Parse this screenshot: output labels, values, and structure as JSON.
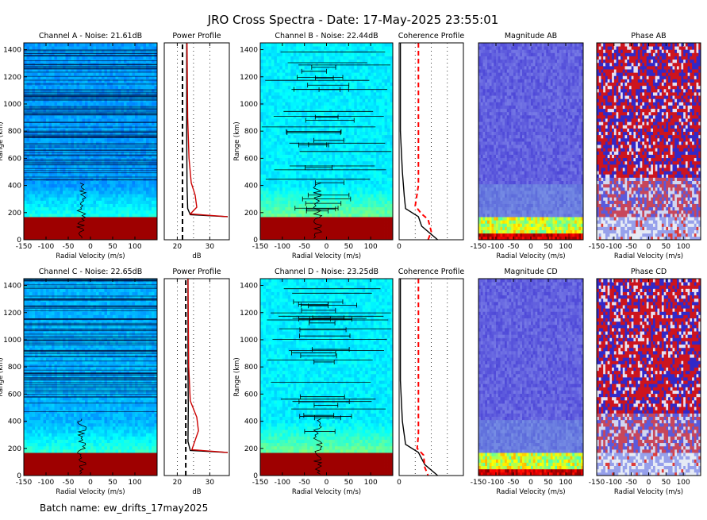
{
  "figure": {
    "title": "JRO Cross Spectra - Date: 17-May-2025 23:55:01",
    "batch_label": "Batch name: ew_drifts_17may2025"
  },
  "labels": {
    "radial_velocity": "Radial Velocity (m/s)",
    "range_km": "Range (km)",
    "db": "dB"
  },
  "chart_data": [
    {
      "id": "chA",
      "type": "heatmap",
      "title": "Channel A - Noise: 21.61dB",
      "xlabel": "Radial Velocity (m/s)",
      "ylabel": "Range (km)",
      "xlim": [
        -150,
        150
      ],
      "ylim": [
        0,
        1450
      ],
      "xticks": [
        "-150",
        "-100",
        "-50",
        "0",
        "50",
        "100"
      ],
      "yticks": [
        "0",
        "200",
        "400",
        "600",
        "800",
        "1000",
        "1200",
        "1400"
      ],
      "colormap": "jet",
      "background_level": 0.28,
      "strong_echo_range_km": [
        0,
        170
      ]
    },
    {
      "id": "ppA",
      "type": "line",
      "title": "Power Profile",
      "xlabel": "dB",
      "xlim": [
        16,
        36
      ],
      "ylim": [
        0,
        1450
      ],
      "xticks": [
        "20",
        "30"
      ],
      "series": [
        {
          "color": "#000000",
          "points": [
            [
              35.5,
              170
            ],
            [
              24.0,
              185
            ],
            [
              23.2,
              230
            ],
            [
              23.0,
              400
            ],
            [
              22.9,
              800
            ],
            [
              22.9,
              1450
            ]
          ]
        },
        {
          "color": "#cc0000",
          "points": [
            [
              35.5,
              170
            ],
            [
              24.0,
              190
            ],
            [
              26.0,
              240
            ],
            [
              25.5,
              330
            ],
            [
              24.3,
              420
            ],
            [
              23.6,
              600
            ],
            [
              23.2,
              900
            ],
            [
              23.0,
              1450
            ]
          ]
        },
        {
          "color": "#000000",
          "dashed": true,
          "points": [
            [
              21.6,
              0
            ],
            [
              21.6,
              1450
            ]
          ]
        }
      ]
    },
    {
      "id": "chB",
      "type": "heatmap",
      "title": "Channel B - Noise: 22.44dB",
      "xlabel": "Radial Velocity (m/s)",
      "ylabel": "Range (km)",
      "xlim": [
        -150,
        150
      ],
      "ylim": [
        0,
        1450
      ],
      "xticks": [
        "-150",
        "-100",
        "-50",
        "0",
        "50",
        "100"
      ],
      "yticks": [
        "0",
        "200",
        "400",
        "600",
        "800",
        "1000",
        "1200",
        "1400"
      ],
      "colormap": "jet",
      "background_level": 0.36,
      "strong_echo_range_km": [
        0,
        170
      ]
    },
    {
      "id": "cohAB",
      "type": "line",
      "title": "Coherence Profile",
      "xlim": [
        0,
        1
      ],
      "ylim": [
        0,
        1450
      ],
      "xticks": [
        "0"
      ],
      "series": [
        {
          "color": "#000000",
          "points": [
            [
              0.02,
              1450
            ],
            [
              0.02,
              800
            ],
            [
              0.05,
              500
            ],
            [
              0.08,
              320
            ],
            [
              0.1,
              230
            ],
            [
              0.3,
              170
            ],
            [
              0.35,
              100
            ],
            [
              0.5,
              40
            ],
            [
              0.6,
              0
            ]
          ]
        },
        {
          "color": "#ff0000",
          "dashed": true,
          "points": [
            [
              0.3,
              1450
            ],
            [
              0.3,
              400
            ],
            [
              0.25,
              250
            ],
            [
              0.35,
              190
            ],
            [
              0.45,
              150
            ],
            [
              0.5,
              60
            ],
            [
              0.45,
              0
            ]
          ]
        }
      ]
    },
    {
      "id": "magAB",
      "type": "heatmap",
      "title": "Magnitude AB",
      "xlabel": "Radial Velocity (m/s)",
      "xlim": [
        -150,
        150
      ],
      "ylim": [
        0,
        1450
      ],
      "xticks": [
        "-150",
        "-100",
        "-50",
        "0",
        "50",
        "100"
      ],
      "colormap": "blue"
    },
    {
      "id": "phAB",
      "type": "heatmap",
      "title": "Phase AB",
      "xlabel": "Radial Velocity (m/s)",
      "xlim": [
        -150,
        150
      ],
      "ylim": [
        0,
        1450
      ],
      "xticks": [
        "-150",
        "-100",
        "-50",
        "0",
        "50",
        "100"
      ],
      "colormap": "red-blue"
    },
    {
      "id": "chC",
      "type": "heatmap",
      "title": "Channel C - Noise: 22.65dB",
      "xlabel": "Radial Velocity (m/s)",
      "ylabel": "Range (km)",
      "xlim": [
        -150,
        150
      ],
      "ylim": [
        0,
        1450
      ],
      "xticks": [
        "-150",
        "-100",
        "-50",
        "0",
        "50",
        "100"
      ],
      "yticks": [
        "0",
        "200",
        "400",
        "600",
        "800",
        "1000",
        "1200",
        "1400"
      ],
      "colormap": "jet",
      "background_level": 0.3,
      "strong_echo_range_km": [
        0,
        170
      ]
    },
    {
      "id": "ppC",
      "type": "line",
      "title": "Power Profile",
      "xlabel": "dB",
      "xlim": [
        16,
        36
      ],
      "ylim": [
        0,
        1450
      ],
      "xticks": [
        "20",
        "30"
      ],
      "series": [
        {
          "color": "#000000",
          "points": [
            [
              35.5,
              170
            ],
            [
              24.0,
              185
            ],
            [
              23.3,
              250
            ],
            [
              23.4,
              500
            ],
            [
              23.3,
              800
            ],
            [
              23.3,
              1450
            ]
          ]
        },
        {
          "color": "#cc0000",
          "points": [
            [
              35.5,
              170
            ],
            [
              24.5,
              190
            ],
            [
              26.5,
              330
            ],
            [
              26.0,
              430
            ],
            [
              24.0,
              550
            ],
            [
              23.5,
              800
            ],
            [
              23.3,
              1450
            ]
          ]
        },
        {
          "color": "#000000",
          "dashed": true,
          "points": [
            [
              22.6,
              0
            ],
            [
              22.6,
              1450
            ]
          ]
        }
      ]
    },
    {
      "id": "chD",
      "type": "heatmap",
      "title": "Channel D - Noise: 23.25dB",
      "xlabel": "Radial Velocity (m/s)",
      "ylabel": "Range (km)",
      "xlim": [
        -150,
        150
      ],
      "ylim": [
        0,
        1450
      ],
      "xticks": [
        "-150",
        "-100",
        "-50",
        "0",
        "50",
        "100"
      ],
      "yticks": [
        "0",
        "200",
        "400",
        "600",
        "800",
        "1000",
        "1200",
        "1400"
      ],
      "colormap": "jet",
      "background_level": 0.36,
      "strong_echo_range_km": [
        0,
        170
      ]
    },
    {
      "id": "cohCD",
      "type": "line",
      "title": "Coherence Profile",
      "xlim": [
        0,
        1
      ],
      "ylim": [
        0,
        1450
      ],
      "xticks": [
        "0"
      ],
      "series": [
        {
          "color": "#000000",
          "points": [
            [
              0.02,
              1450
            ],
            [
              0.02,
              700
            ],
            [
              0.05,
              400
            ],
            [
              0.1,
              230
            ],
            [
              0.3,
              170
            ],
            [
              0.4,
              80
            ],
            [
              0.6,
              0
            ]
          ]
        },
        {
          "color": "#ff0000",
          "dashed": true,
          "points": [
            [
              0.3,
              1450
            ],
            [
              0.3,
              300
            ],
            [
              0.28,
              200
            ],
            [
              0.38,
              150
            ],
            [
              0.4,
              60
            ],
            [
              0.45,
              0
            ]
          ]
        }
      ]
    },
    {
      "id": "magCD",
      "type": "heatmap",
      "title": "Magnitude CD",
      "xlabel": "Radial Velocity (m/s)",
      "xlim": [
        -150,
        150
      ],
      "ylim": [
        0,
        1450
      ],
      "xticks": [
        "-150",
        "-100",
        "-50",
        "0",
        "50",
        "100"
      ],
      "colormap": "blue"
    },
    {
      "id": "phCD",
      "type": "heatmap",
      "title": "Phase CD",
      "xlabel": "Radial Velocity (m/s)",
      "xlim": [
        -150,
        150
      ],
      "ylim": [
        0,
        1450
      ],
      "xticks": [
        "-150",
        "-100",
        "-50",
        "0",
        "50",
        "100"
      ],
      "colormap": "red-blue"
    }
  ]
}
